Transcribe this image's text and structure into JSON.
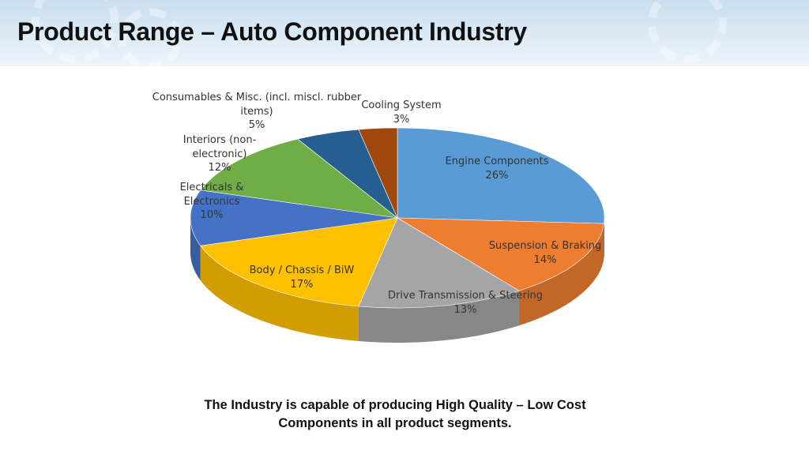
{
  "slide": {
    "title": "Product Range – Auto Component Industry",
    "footer_lines": [
      "The Industry is capable of producing High Quality – Low Cost",
      "Components in all product segments."
    ]
  },
  "chart_data": {
    "type": "pie",
    "style": "3d",
    "slices": [
      {
        "label": "Engine Components",
        "value": 26,
        "display": "26%",
        "color": "#5b9bd5"
      },
      {
        "label": "Suspension & Braking",
        "value": 14,
        "display": "14%",
        "color": "#ed7d31"
      },
      {
        "label": "Drive Transmission & Steering",
        "value": 13,
        "display": "13%",
        "color": "#a5a5a5"
      },
      {
        "label": "Body / Chassis / BiW",
        "value": 17,
        "display": "17%",
        "color": "#ffc000"
      },
      {
        "label": "Electricals & Electronics",
        "value": 10,
        "display": "10%",
        "color": "#4472c4"
      },
      {
        "label": "Interiors (non-electronic)",
        "value": 12,
        "display": "12%",
        "color": "#70ad47"
      },
      {
        "label": "Consumables & Misc. (incl. miscl. rubber items)",
        "value": 5,
        "display": "5%",
        "color": "#255e91"
      },
      {
        "label": "Cooling System",
        "value": 3,
        "display": "3%",
        "color": "#9e480e"
      }
    ],
    "label_lines": [
      [
        "Engine Components"
      ],
      [
        "Suspension & Braking"
      ],
      [
        "Drive Transmission & Steering"
      ],
      [
        "Body / Chassis / BiW"
      ],
      [
        "Electricals &",
        "Electronics"
      ],
      [
        "Interiors (non-",
        "electronic)"
      ],
      [
        "Consumables & Misc. (incl. miscl. rubber",
        "items)"
      ],
      [
        "Cooling System"
      ]
    ]
  }
}
